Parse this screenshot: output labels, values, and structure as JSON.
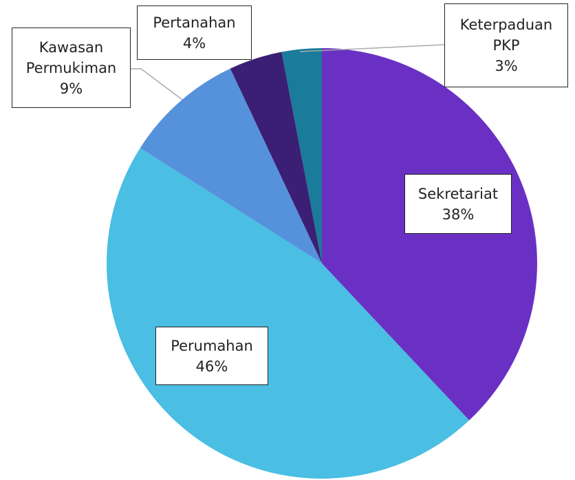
{
  "chart_data": {
    "type": "pie",
    "categories": [
      "Sekretariat",
      "Perumahan",
      "Kawasan Permukiman",
      "Pertanahan",
      "Keterpaduan PKP"
    ],
    "values": [
      38,
      46,
      9,
      4,
      3
    ],
    "value_labels": [
      "38%",
      "46%",
      "9%",
      "4%",
      "3%"
    ],
    "colors": [
      "#6a30c4",
      "#4abee3",
      "#5592db",
      "#3b1f74",
      "#1b7b9b"
    ]
  }
}
